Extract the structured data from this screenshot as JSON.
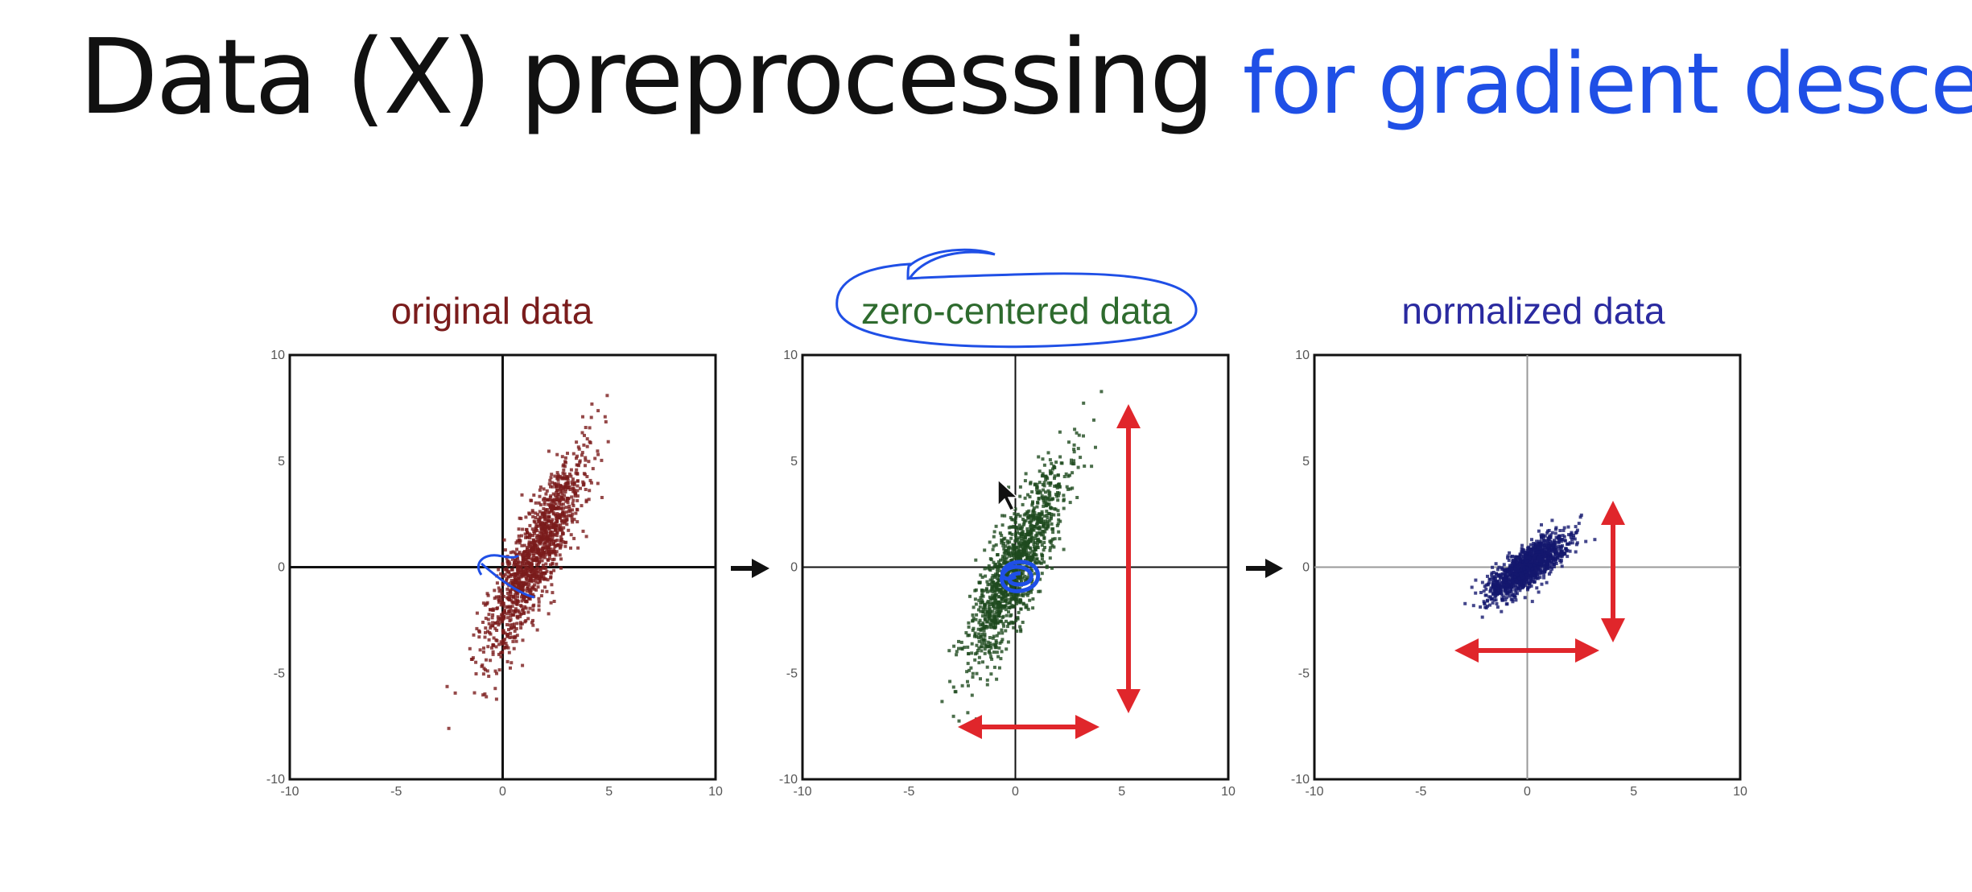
{
  "slide": {
    "title_main": "Data (X) preprocessing",
    "title_accent": "for gradient descent"
  },
  "colors": {
    "title": "#111111",
    "accent": "#1f4fe6",
    "original": "#7a1c1c",
    "zero_centered": "#1e4a1e",
    "normalized": "#14186e",
    "range_arrow": "#e0262b",
    "ink_annotation": "#1f4fe6"
  },
  "icons": [
    "transform-arrow-icon",
    "mouse-cursor-icon",
    "annotation-circle"
  ],
  "chart_data": [
    {
      "type": "scatter",
      "title": "original data",
      "xlim": [
        -10,
        10
      ],
      "ylim": [
        -10,
        10
      ],
      "xticks": [
        "-10",
        "-5",
        "0",
        "5",
        "10"
      ],
      "yticks": [
        "10",
        "5",
        "0",
        "-5",
        "-10"
      ],
      "grid": false,
      "points": {
        "mean": [
          1.5,
          0.5
        ],
        "std_major": 2.6,
        "std_minor": 0.55,
        "angle_deg": 66,
        "count": 1300
      }
    },
    {
      "type": "scatter",
      "title": "zero-centered data",
      "xlim": [
        -10,
        10
      ],
      "ylim": [
        -10,
        10
      ],
      "xticks": [
        "-10",
        "-5",
        "0",
        "5",
        "10"
      ],
      "yticks": [
        "10",
        "5",
        "0",
        "-5",
        "-10"
      ],
      "grid": false,
      "points": {
        "mean": [
          0,
          0
        ],
        "std_major": 2.6,
        "std_minor": 0.55,
        "angle_deg": 66,
        "count": 1300
      }
    },
    {
      "type": "scatter",
      "title": "normalized data",
      "xlim": [
        -10,
        10
      ],
      "ylim": [
        -10,
        10
      ],
      "xticks": [
        "-10",
        "-5",
        "0",
        "5",
        "10"
      ],
      "yticks": [
        "10",
        "5",
        "0",
        "-5",
        "-10"
      ],
      "grid": false,
      "points": {
        "mean": [
          0,
          0
        ],
        "std_major": 1.1,
        "std_minor": 0.38,
        "angle_deg": 38,
        "count": 1300
      }
    }
  ]
}
